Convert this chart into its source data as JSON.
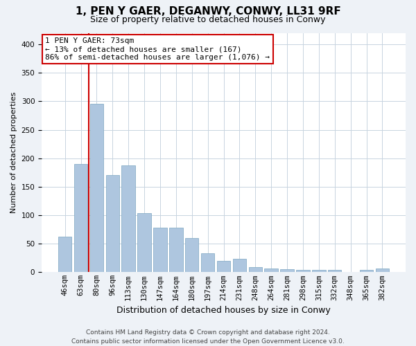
{
  "title": "1, PEN Y GAER, DEGANWY, CONWY, LL31 9RF",
  "subtitle": "Size of property relative to detached houses in Conwy",
  "xlabel": "Distribution of detached houses by size in Conwy",
  "ylabel": "Number of detached properties",
  "categories": [
    "46sqm",
    "63sqm",
    "80sqm",
    "96sqm",
    "113sqm",
    "130sqm",
    "147sqm",
    "164sqm",
    "180sqm",
    "197sqm",
    "214sqm",
    "231sqm",
    "248sqm",
    "264sqm",
    "281sqm",
    "298sqm",
    "315sqm",
    "332sqm",
    "348sqm",
    "365sqm",
    "382sqm"
  ],
  "values": [
    63,
    190,
    295,
    170,
    188,
    104,
    78,
    78,
    60,
    33,
    20,
    24,
    9,
    7,
    5,
    4,
    4,
    4,
    1,
    4,
    7
  ],
  "bar_color": "#aec6df",
  "bar_edge_color": "#8aafc8",
  "vline_x_index": 1.5,
  "vline_color": "#cc0000",
  "annotation_text": "1 PEN Y GAER: 73sqm\n← 13% of detached houses are smaller (167)\n86% of semi-detached houses are larger (1,076) →",
  "annotation_box_color": "#ffffff",
  "annotation_box_edge_color": "#cc0000",
  "ylim": [
    0,
    420
  ],
  "yticks": [
    0,
    50,
    100,
    150,
    200,
    250,
    300,
    350,
    400
  ],
  "footer_text": "Contains HM Land Registry data © Crown copyright and database right 2024.\nContains public sector information licensed under the Open Government Licence v3.0.",
  "bg_color": "#eef2f7",
  "plot_bg_color": "#ffffff",
  "grid_color": "#c8d4e0",
  "title_fontsize": 11,
  "subtitle_fontsize": 9,
  "ylabel_fontsize": 8,
  "xlabel_fontsize": 9,
  "tick_fontsize": 7.5,
  "footer_fontsize": 6.5,
  "annotation_fontsize": 8
}
